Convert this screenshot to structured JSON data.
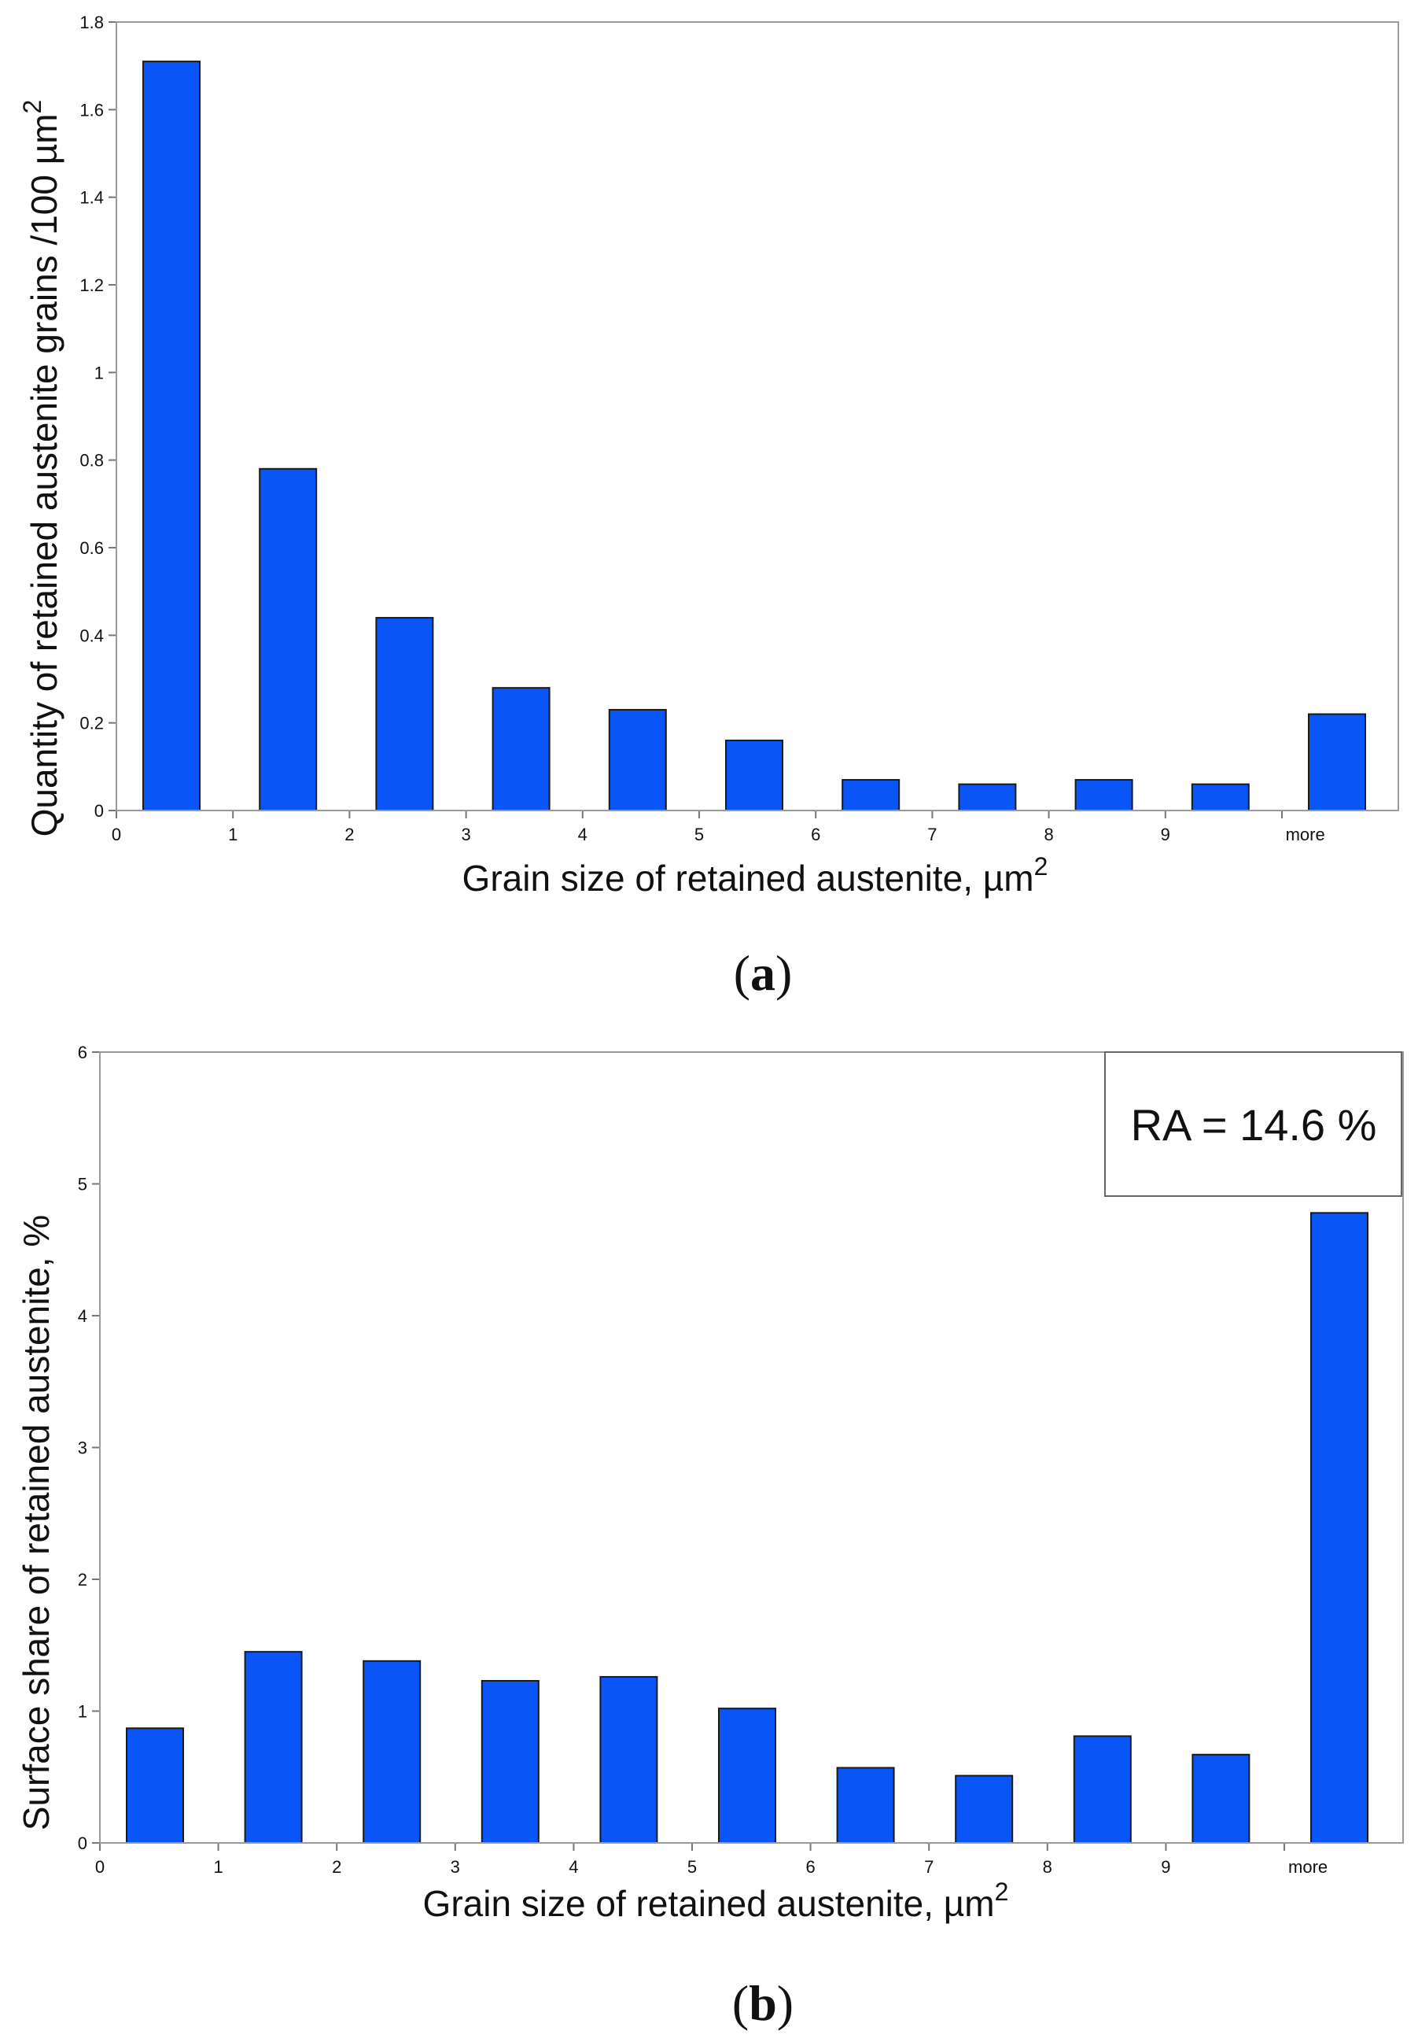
{
  "chart_data": [
    {
      "type": "bar",
      "panel": "a",
      "caption_letter": "a",
      "categories": [
        "0",
        "1",
        "2",
        "3",
        "4",
        "5",
        "6",
        "7",
        "8",
        "9",
        "more"
      ],
      "values": [
        1.71,
        0.78,
        0.44,
        0.28,
        0.23,
        0.16,
        0.07,
        0.06,
        0.07,
        0.06,
        0.22
      ],
      "xticks": [
        "0",
        "1",
        "2",
        "3",
        "4",
        "5",
        "6",
        "7",
        "8",
        "9",
        "more"
      ],
      "yticks": [
        "0",
        "0.2",
        "0.4",
        "0.6",
        "0.8",
        "1",
        "1.2",
        "1.4",
        "1.6",
        "1.8"
      ],
      "ylim": [
        0,
        1.8
      ],
      "xlabel": "Grain size of retained austenite, µm",
      "xlabel_sup": "2",
      "ylabel": "Quantity of retained austenite grains /100 µm",
      "ylabel_sup": "2",
      "bar_color": "#0a55f5",
      "grid": false
    },
    {
      "type": "bar",
      "panel": "b",
      "caption_letter": "b",
      "categories": [
        "0",
        "1",
        "2",
        "3",
        "4",
        "5",
        "6",
        "7",
        "8",
        "9",
        "more"
      ],
      "values": [
        0.87,
        1.45,
        1.38,
        1.23,
        1.26,
        1.02,
        0.57,
        0.51,
        0.81,
        0.67,
        4.78
      ],
      "xticks": [
        "0",
        "1",
        "2",
        "3",
        "4",
        "5",
        "6",
        "7",
        "8",
        "9",
        "more"
      ],
      "yticks": [
        "0",
        "1",
        "2",
        "3",
        "4",
        "5",
        "6"
      ],
      "ylim": [
        0,
        6
      ],
      "xlabel": "Grain size of retained austenite, µm",
      "xlabel_sup": "2",
      "ylabel": "Surface share of retained austenite, %",
      "annotation": "RA = 14.6 %",
      "annotation_position": "top-right",
      "bar_color": "#0a55f5",
      "grid": false
    }
  ]
}
